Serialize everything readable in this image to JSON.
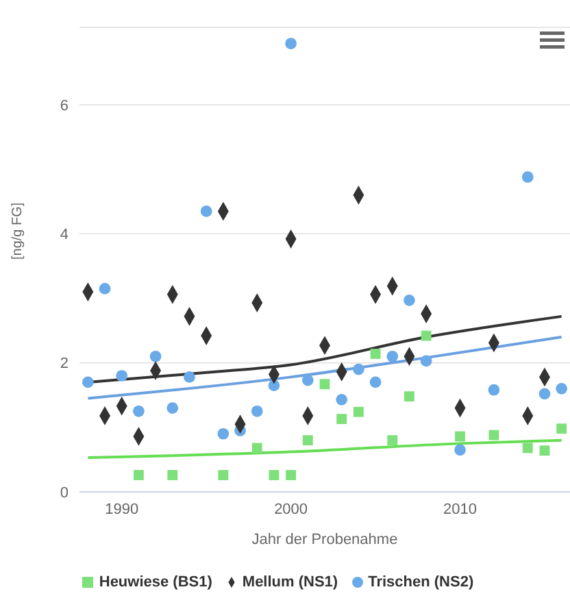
{
  "chart_data": {
    "type": "scatter",
    "xlabel": "Jahr der Probenahme",
    "ylabel": "[ng/g FG]",
    "xlim": [
      1987.5,
      2016.5
    ],
    "xticks": [
      1990,
      2000,
      2010
    ],
    "ylim": [
      0,
      7.2
    ],
    "yticks": [
      0,
      2,
      4,
      6
    ],
    "grid": "y",
    "legend": "bottom",
    "series": [
      {
        "name": "Trischen (NS2)",
        "color": "#6aaae8",
        "marker": "circle",
        "x": [
          1988,
          1989,
          1990,
          1991,
          1992,
          1993,
          1994,
          1995,
          1996,
          1997,
          1998,
          1999,
          2000,
          2001,
          2003,
          2004,
          2005,
          2006,
          2007,
          2008,
          2010,
          2012,
          2014,
          2015,
          2016
        ],
        "values": [
          1.7,
          3.15,
          1.8,
          1.25,
          2.1,
          1.3,
          1.78,
          4.35,
          0.9,
          0.95,
          1.25,
          1.65,
          6.95,
          1.73,
          1.43,
          1.9,
          1.7,
          2.1,
          2.97,
          2.03,
          0.65,
          1.58,
          4.88,
          1.52,
          1.6
        ]
      },
      {
        "name": "Mellum (NS1)",
        "color": "#333333",
        "marker": "diamond",
        "x": [
          1988,
          1989,
          1990,
          1991,
          1992,
          1993,
          1994,
          1995,
          1996,
          1997,
          1998,
          1999,
          2000,
          2001,
          2002,
          2003,
          2004,
          2005,
          2006,
          2007,
          2008,
          2010,
          2012,
          2014,
          2015
        ],
        "values": [
          3.1,
          1.18,
          1.33,
          0.86,
          1.88,
          3.06,
          2.72,
          2.42,
          4.35,
          1.05,
          2.93,
          1.82,
          3.92,
          1.18,
          2.27,
          1.86,
          4.6,
          3.06,
          3.19,
          2.1,
          2.76,
          1.3,
          2.31,
          1.18,
          1.78
        ]
      },
      {
        "name": "Heuwiese (BS1)",
        "color": "#7ee07a",
        "marker": "square",
        "x": [
          1991,
          1993,
          1996,
          1998,
          1999,
          2000,
          2001,
          2002,
          2003,
          2004,
          2005,
          2006,
          2007,
          2008,
          2010,
          2012,
          2014,
          2015,
          2016
        ],
        "values": [
          0.26,
          0.26,
          0.26,
          0.68,
          0.26,
          0.26,
          0.8,
          1.67,
          1.13,
          1.24,
          2.14,
          0.8,
          1.48,
          2.42,
          0.86,
          0.88,
          0.68,
          0.64,
          0.98
        ]
      },
      {
        "type": "line",
        "color": "#333333",
        "marker": "none",
        "x": [
          1988,
          1995,
          2000,
          2008,
          2016
        ],
        "values": [
          1.7,
          1.85,
          1.97,
          2.4,
          2.72
        ]
      },
      {
        "type": "line",
        "color": "#6aa0e0",
        "marker": "none",
        "x": [
          1988,
          2000,
          2008,
          2016
        ],
        "values": [
          1.45,
          1.78,
          2.08,
          2.4
        ]
      },
      {
        "type": "line",
        "color": "#66dd55",
        "marker": "none",
        "x": [
          1988,
          2000,
          2010,
          2016
        ],
        "values": [
          0.53,
          0.62,
          0.75,
          0.8
        ]
      }
    ]
  }
}
